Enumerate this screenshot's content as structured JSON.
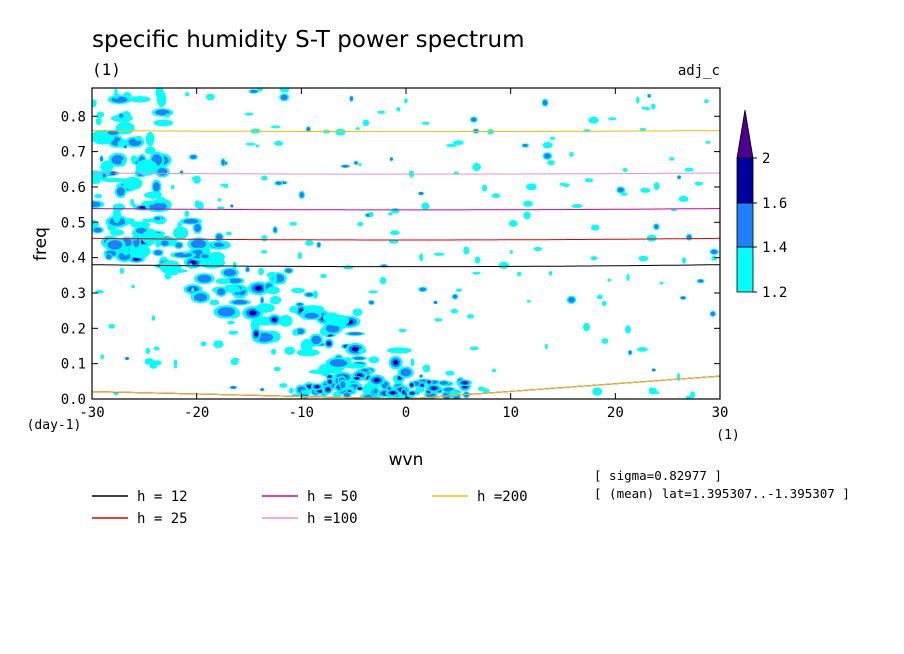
{
  "chart_data": {
    "type": "contour",
    "title": "specific humidity S-T power spectrum",
    "subtitle": "(1)",
    "label_right": "adj_c",
    "xlabel": "wvn",
    "ylabel": "freq",
    "x_unit": "(1)",
    "y_unit": "(day-1)",
    "xlim": [
      -30,
      30
    ],
    "ylim": [
      0,
      0.88
    ],
    "x_ticks": [
      -30,
      -20,
      -10,
      0,
      10,
      20,
      30
    ],
    "y_ticks": [
      0.0,
      0.1,
      0.2,
      0.3,
      0.4,
      0.5,
      0.6,
      0.7,
      0.8
    ],
    "colorbar": {
      "levels": [
        1.2,
        1.4,
        1.6,
        2
      ],
      "colors": [
        "#00ffff",
        "#1f7fff",
        "#0000a0",
        "#4b0090"
      ]
    },
    "dispersion_curves": [
      {
        "label": "h = 12",
        "h": 12,
        "color": "#000000"
      },
      {
        "label": "h = 25",
        "h": 25,
        "color": "#e00000"
      },
      {
        "label": "h = 50",
        "h": 50,
        "color": "#d000a0"
      },
      {
        "label": "h =100",
        "h": 100,
        "color": "#e090e0"
      },
      {
        "label": "h =200",
        "h": 200,
        "color": "#f0c000"
      }
    ],
    "annotations": [
      "[ sigma=0.82977 ]",
      "[ (mean) lat=1.395307..-1.395307 ]"
    ],
    "features": [
      {
        "name": "westward-ridge",
        "points": [
          [
            -30,
            0.56
          ],
          [
            -25,
            0.46
          ],
          [
            -20,
            0.36
          ],
          [
            -15,
            0.27
          ],
          [
            -10,
            0.18
          ],
          [
            -5,
            0.09
          ],
          [
            0,
            0.02
          ]
        ]
      },
      {
        "name": "eastward-kelvin-band",
        "points": [
          [
            0,
            0.01
          ],
          [
            3,
            0.02
          ],
          [
            5,
            0.04
          ]
        ]
      }
    ]
  }
}
